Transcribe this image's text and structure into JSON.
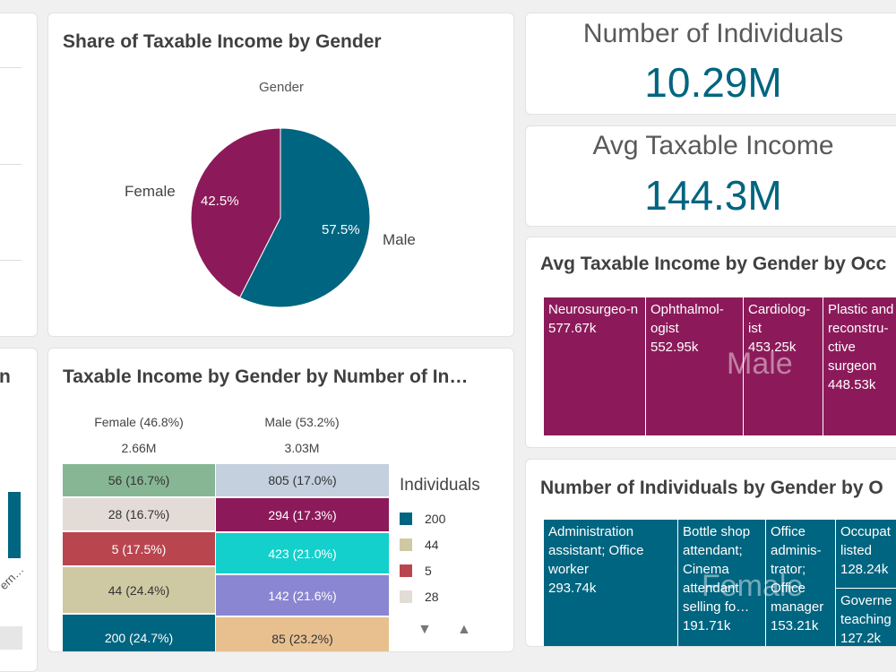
{
  "colors": {
    "male": "#006580",
    "female": "#8c1a5a",
    "kpi": "#006580"
  },
  "kpi_individuals": {
    "label": "Number of Individuals",
    "value": "10.29M"
  },
  "kpi_avg_income": {
    "label": "Avg Taxable Income",
    "value": "144.3M"
  },
  "pie": {
    "title": "Share of Taxable Income by Gender",
    "dimension": "Gender",
    "female_label": "Female",
    "male_label": "Male",
    "female_pct": "42.5%",
    "male_pct": "57.5%"
  },
  "mekko": {
    "title": "Taxable Income by Gender by Number of In…",
    "female_header": "Female (46.8%)",
    "male_header": "Male (53.2%)",
    "female_total": "2.66M",
    "male_total": "3.03M",
    "female_cells": [
      "56 (16.7%)",
      "28 (16.7%)",
      "5 (17.5%)",
      "44 (24.4%)",
      "200 (24.7%)"
    ],
    "male_cells": [
      "805 (17.0%)",
      "294 (17.3%)",
      "423 (21.0%)",
      "142 (21.6%)",
      "85 (23.2%)"
    ],
    "legend_title": "Individuals",
    "legend": [
      "200",
      "44",
      "5",
      "28"
    ]
  },
  "treemap_income": {
    "title": "Avg Taxable Income by Gender by Occ",
    "watermark": "Male",
    "cells": [
      {
        "name": "Neurosurgeo-n",
        "value": "577.67k"
      },
      {
        "name": "Ophthalmol-ogist",
        "value": "552.95k"
      },
      {
        "name": "Cardiolog-ist",
        "value": "453.25k"
      },
      {
        "name": "Plastic and reconstru-ctive surgeon",
        "value": "448.53k"
      }
    ]
  },
  "treemap_individuals": {
    "title": "Number of Individuals by Gender by O",
    "watermark": "Female",
    "cells": [
      {
        "name": "Administration assistant; Office worker",
        "value": "293.74k"
      },
      {
        "name": "Bottle shop attendant; Cinema attendant selling fo…",
        "value": "191.71k"
      },
      {
        "name": "Office adminis-trator; Office manager",
        "value": "153.21k"
      },
      {
        "name": "Occupat listed",
        "value": "128.24k"
      },
      {
        "name": "Governe teaching",
        "value": "127.2k"
      }
    ]
  },
  "left_partial": {
    "title_fragment": "n",
    "axis_fragment": "ern…"
  }
}
